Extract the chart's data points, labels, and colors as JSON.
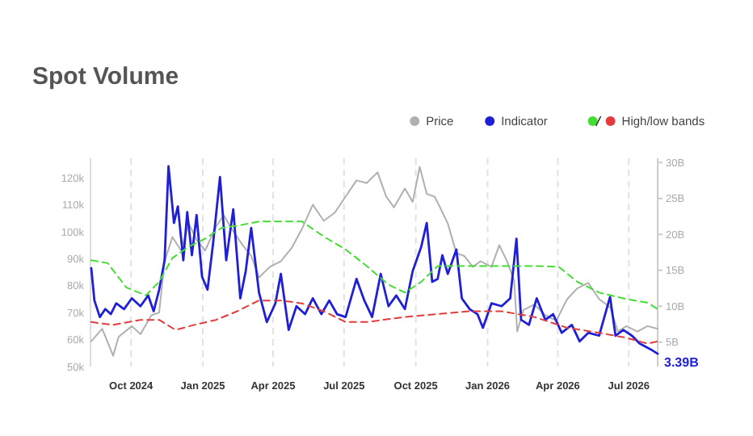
{
  "chart_data": {
    "type": "line",
    "title": "Spot Volume",
    "legend": "top right",
    "grid": "x",
    "marker": "none",
    "xlim": [
      "2024-08-10",
      "2026-08-07"
    ],
    "xticks": [
      {
        "value": "2024-10-01",
        "label": "Oct 2024"
      },
      {
        "value": "2025-01-01",
        "label": "Jan 2025"
      },
      {
        "value": "2025-04-01",
        "label": "Apr 2025"
      },
      {
        "value": "2025-07-01",
        "label": "Jul 2025"
      },
      {
        "value": "2025-10-01",
        "label": "Oct 2025"
      },
      {
        "value": "2026-01-01",
        "label": "Jan 2026"
      },
      {
        "value": "2026-04-01",
        "label": "Apr 2026"
      },
      {
        "value": "2026-07-01",
        "label": "Jul 2026"
      }
    ],
    "ylim": [
      50,
      127.2
    ],
    "yticks": [
      {
        "value": 50,
        "label": "50k"
      },
      {
        "value": 60,
        "label": "60k"
      },
      {
        "value": 70,
        "label": "70k"
      },
      {
        "value": 80,
        "label": "80k"
      },
      {
        "value": 90,
        "label": "90k"
      },
      {
        "value": 100,
        "label": "100k"
      },
      {
        "value": 110,
        "label": "110k"
      },
      {
        "value": 120,
        "label": "120k"
      }
    ],
    "y2lim": [
      1.6,
      30.6
    ],
    "y2ticks": [
      {
        "value": 5,
        "label": "5B"
      },
      {
        "value": 10,
        "label": "10B"
      },
      {
        "value": 15,
        "label": "15B"
      },
      {
        "value": 20,
        "label": "20B"
      },
      {
        "value": 25,
        "label": "25B"
      },
      {
        "value": 30,
        "label": "30B"
      }
    ],
    "series": [
      {
        "name": "Price",
        "color": "#b0b0b0",
        "line_style": "solid",
        "x": [
          "2024-08-11",
          "2024-08-25",
          "2024-09-08",
          "2024-09-15",
          "2024-10-02",
          "2024-10-13",
          "2024-10-27",
          "2024-11-06",
          "2024-11-13",
          "2024-11-23",
          "2024-12-04",
          "2024-12-14",
          "2024-12-24",
          "2025-01-04",
          "2025-01-18",
          "2025-01-28",
          "2025-02-07",
          "2025-02-21",
          "2025-03-04",
          "2025-03-14",
          "2025-03-28",
          "2025-04-11",
          "2025-04-25",
          "2025-05-08",
          "2025-05-22",
          "2025-06-05",
          "2025-06-19",
          "2025-07-03",
          "2025-07-17",
          "2025-07-30",
          "2025-08-13",
          "2025-08-24",
          "2025-09-03",
          "2025-09-17",
          "2025-09-27",
          "2025-10-06",
          "2025-10-15",
          "2025-10-25",
          "2025-11-01",
          "2025-11-11",
          "2025-11-22",
          "2025-12-02",
          "2025-12-13",
          "2025-12-23",
          "2026-01-06",
          "2026-01-16",
          "2026-01-26",
          "2026-02-04",
          "2026-02-08",
          "2026-02-16",
          "2026-03-02",
          "2026-03-16",
          "2026-03-30",
          "2026-04-13",
          "2026-04-26",
          "2026-05-10",
          "2026-05-24",
          "2026-06-07",
          "2026-06-17",
          "2026-06-28",
          "2026-07-12",
          "2026-07-25",
          "2026-08-07"
        ],
        "values": [
          59.4,
          64,
          54,
          61,
          65,
          62,
          69,
          70,
          89,
          98,
          93,
          103,
          97,
          93,
          102,
          106,
          101,
          95,
          91,
          83,
          87,
          89,
          94,
          101,
          110,
          104,
          107,
          113,
          119,
          118,
          122,
          113,
          109,
          116,
          111,
          124,
          114,
          113,
          109,
          103,
          92,
          91,
          87,
          89,
          87,
          95,
          89,
          82,
          63,
          71,
          73,
          69,
          67,
          75,
          79,
          81,
          75,
          72,
          63,
          65,
          63,
          65,
          64
        ]
      },
      {
        "name": "Indicator",
        "color": "#1f1fd6",
        "axis": "y2",
        "line_style": "solid",
        "x": [
          "2024-08-11",
          "2024-08-15",
          "2024-08-22",
          "2024-08-29",
          "2024-09-05",
          "2024-09-12",
          "2024-09-22",
          "2024-10-02",
          "2024-10-13",
          "2024-10-23",
          "2024-10-30",
          "2024-11-06",
          "2024-11-13",
          "2024-11-18",
          "2024-11-25",
          "2024-11-30",
          "2024-12-07",
          "2024-12-12",
          "2024-12-18",
          "2024-12-24",
          "2024-12-31",
          "2025-01-07",
          "2025-01-14",
          "2025-01-23",
          "2025-01-31",
          "2025-02-09",
          "2025-02-18",
          "2025-02-25",
          "2025-03-04",
          "2025-03-14",
          "2025-03-24",
          "2025-04-04",
          "2025-04-11",
          "2025-04-21",
          "2025-05-01",
          "2025-05-12",
          "2025-05-22",
          "2025-06-02",
          "2025-06-12",
          "2025-06-22",
          "2025-07-03",
          "2025-07-17",
          "2025-07-27",
          "2025-08-06",
          "2025-08-17",
          "2025-08-27",
          "2025-09-06",
          "2025-09-17",
          "2025-09-27",
          "2025-10-08",
          "2025-10-15",
          "2025-10-22",
          "2025-10-29",
          "2025-11-04",
          "2025-11-11",
          "2025-11-22",
          "2025-11-29",
          "2025-12-09",
          "2025-12-19",
          "2025-12-26",
          "2026-01-06",
          "2026-01-19",
          "2026-01-30",
          "2026-02-07",
          "2026-02-13",
          "2026-02-23",
          "2026-03-05",
          "2026-03-16",
          "2026-03-26",
          "2026-04-06",
          "2026-04-19",
          "2026-04-29",
          "2026-05-10",
          "2026-05-24",
          "2026-06-07",
          "2026-06-14",
          "2026-06-24",
          "2026-07-05",
          "2026-07-15",
          "2026-07-29",
          "2026-08-07"
        ],
        "values": [
          15.3,
          10.8,
          8.5,
          9.6,
          8.9,
          10.4,
          9.6,
          11.1,
          10.0,
          11.5,
          9.3,
          12.3,
          16.4,
          29.5,
          21.6,
          23.9,
          16.4,
          23.1,
          17.1,
          22.7,
          14.1,
          12.3,
          18.6,
          28.0,
          16.4,
          23.5,
          11.1,
          14.9,
          20.9,
          11.9,
          7.8,
          10.4,
          14.5,
          6.7,
          10.0,
          8.9,
          11.1,
          8.9,
          10.8,
          8.9,
          8.5,
          13.8,
          10.8,
          8.5,
          14.5,
          10.0,
          11.5,
          9.6,
          14.9,
          18.3,
          21.6,
          13.4,
          13.8,
          17.1,
          14.5,
          17.9,
          11.1,
          9.6,
          8.9,
          7.0,
          10.4,
          10.0,
          11.1,
          19.4,
          8.1,
          7.4,
          11.1,
          8.1,
          8.9,
          6.3,
          7.4,
          5.1,
          6.3,
          5.9,
          11.3,
          5.9,
          6.7,
          5.9,
          4.8,
          4.0,
          3.39
        ],
        "value_labels": [
          null,
          null,
          null,
          null,
          null,
          null,
          null,
          null,
          null,
          null,
          null,
          null,
          null,
          null,
          null,
          null,
          null,
          null,
          null,
          null,
          null,
          null,
          null,
          null,
          null,
          null,
          null,
          null,
          null,
          null,
          null,
          null,
          null,
          null,
          null,
          null,
          null,
          null,
          null,
          null,
          null,
          null,
          null,
          null,
          null,
          null,
          null,
          null,
          null,
          null,
          null,
          null,
          null,
          null,
          null,
          null,
          null,
          null,
          null,
          null,
          null,
          null,
          null,
          null,
          null,
          null,
          null,
          null,
          null,
          null,
          null,
          null,
          null,
          null,
          null,
          null,
          null,
          null,
          null,
          null,
          "3.39B"
        ]
      },
      {
        "color": "#44dd33",
        "axis": "y2",
        "line_style": "dashed",
        "x": [
          "2024-08-11",
          "2024-09-01",
          "2024-09-25",
          "2024-10-20",
          "2024-11-06",
          "2024-11-23",
          "2024-12-14",
          "2025-01-04",
          "2025-01-25",
          "2025-02-14",
          "2025-03-14",
          "2025-04-11",
          "2025-05-08",
          "2025-06-05",
          "2025-07-03",
          "2025-07-30",
          "2025-08-27",
          "2025-09-17",
          "2025-10-08",
          "2025-10-29",
          "2025-11-25",
          "2025-12-23",
          "2026-02-02",
          "2026-03-02",
          "2026-04-02",
          "2026-04-26",
          "2026-05-24",
          "2026-06-28",
          "2026-07-25",
          "2026-08-07"
        ],
        "values": [
          16.4,
          16.0,
          12.6,
          11.5,
          13.4,
          16.7,
          18.3,
          19.4,
          20.9,
          21.2,
          21.8,
          21.8,
          21.8,
          19.7,
          17.9,
          15.6,
          13.0,
          11.9,
          13.4,
          15.6,
          15.6,
          15.6,
          15.6,
          15.6,
          15.5,
          13.4,
          11.9,
          11.0,
          10.5,
          9.6
        ]
      },
      {
        "name": "High/low bands",
        "color": "#e23c3c",
        "axis": "y2",
        "line_style": "dashed",
        "x": [
          "2024-08-11",
          "2024-09-08",
          "2024-10-13",
          "2024-11-06",
          "2024-11-27",
          "2024-12-21",
          "2025-01-18",
          "2025-02-14",
          "2025-03-14",
          "2025-04-11",
          "2025-05-08",
          "2025-06-05",
          "2025-07-03",
          "2025-07-30",
          "2025-09-17",
          "2025-10-29",
          "2025-12-09",
          "2026-01-19",
          "2026-03-02",
          "2026-04-13",
          "2026-05-24",
          "2026-06-28",
          "2026-07-25",
          "2026-08-07"
        ],
        "values": [
          7.8,
          7.4,
          8.1,
          8.1,
          6.7,
          7.4,
          8.1,
          9.3,
          10.8,
          10.8,
          10.4,
          9.3,
          7.8,
          7.8,
          8.5,
          8.9,
          9.3,
          9.3,
          8.5,
          7.0,
          6.3,
          5.6,
          4.8,
          5.1
        ]
      }
    ]
  }
}
